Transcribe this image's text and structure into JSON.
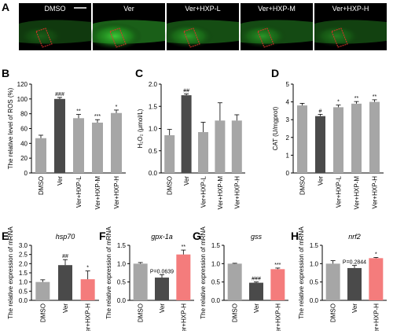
{
  "figure": {
    "panel_a": {
      "letter": "A",
      "images": [
        {
          "label": "DMSO",
          "glow": 0.25
        },
        {
          "label": "Ver",
          "glow": 0.9
        },
        {
          "label": "Ver+HXP-L",
          "glow": 0.6
        },
        {
          "label": "Ver+HXP-M",
          "glow": 0.55
        },
        {
          "label": "Ver+HXP-H",
          "glow": 0.4
        }
      ],
      "colors": {
        "background": "#000000",
        "tissue": "#2ea82a",
        "roi": "#e0302a",
        "scale_bar": "#ffffff"
      }
    },
    "colors": {
      "dmso": "#a6a6a6",
      "ver": "#4a4a4a",
      "treat_gray": "#a6a6a6",
      "treat_pink": "#f47c7c"
    }
  },
  "chart_data": [
    {
      "letter": "B",
      "type": "bar",
      "ylabel": "The relative level of ROS (%)",
      "ylim": [
        0,
        120
      ],
      "ticks": [
        0,
        20,
        40,
        60,
        80,
        100,
        120
      ],
      "categories": [
        "DMSO",
        "Ver",
        "Ver+HXP-L",
        "Ver+HXP-M",
        "Ver+HXP-H"
      ],
      "values": [
        47,
        100,
        74,
        68,
        81
      ],
      "errors": [
        4,
        2,
        5,
        4,
        4
      ],
      "colors": [
        "#a6a6a6",
        "#4a4a4a",
        "#a6a6a6",
        "#a6a6a6",
        "#a6a6a6"
      ],
      "sig": [
        "",
        "###",
        "**",
        "***",
        "*"
      ]
    },
    {
      "letter": "C",
      "type": "bar",
      "ylabel": "H₂O₂ (μmol/L)",
      "ylim": [
        0,
        2.0
      ],
      "ticks": [
        0.0,
        0.5,
        1.0,
        1.5,
        2.0
      ],
      "tick_decimals": 1,
      "categories": [
        "DMSO",
        "Ver",
        "Ver+HXP-L",
        "Ver+HXP-M",
        "Ver+HXP-H"
      ],
      "values": [
        0.85,
        1.75,
        0.92,
        1.18,
        1.18
      ],
      "errors": [
        0.13,
        0.03,
        0.22,
        0.4,
        0.13
      ],
      "colors": [
        "#a6a6a6",
        "#4a4a4a",
        "#a6a6a6",
        "#a6a6a6",
        "#a6a6a6"
      ],
      "sig": [
        "",
        "##",
        "",
        "",
        ""
      ]
    },
    {
      "letter": "D",
      "type": "bar",
      "ylabel": "CAT (U/mgprot)",
      "ylim": [
        0,
        5
      ],
      "ticks": [
        0,
        1,
        2,
        3,
        4,
        5
      ],
      "categories": [
        "DMSO",
        "Ver",
        "Ver+HXP-L",
        "Ver+HXP-M",
        "Ver+HXP-H"
      ],
      "values": [
        3.8,
        3.2,
        3.7,
        3.9,
        4.0
      ],
      "errors": [
        0.12,
        0.1,
        0.12,
        0.12,
        0.12
      ],
      "colors": [
        "#a6a6a6",
        "#4a4a4a",
        "#a6a6a6",
        "#a6a6a6",
        "#a6a6a6"
      ],
      "sig": [
        "",
        "#",
        "*",
        "**",
        "**"
      ]
    },
    {
      "letter": "E",
      "type": "bar",
      "title": "hsp70",
      "ylabel": "The relative expression of mRNA",
      "ylim": [
        0,
        3.0
      ],
      "ticks": [
        0.0,
        0.5,
        1.0,
        1.5,
        2.0,
        2.5,
        3.0
      ],
      "tick_decimals": 1,
      "categories": [
        "DMSO",
        "Ver",
        "Ver+HXP-H"
      ],
      "values": [
        1.0,
        1.92,
        1.15
      ],
      "errors": [
        0.12,
        0.3,
        0.45
      ],
      "colors": [
        "#a6a6a6",
        "#4a4a4a",
        "#f47c7c"
      ],
      "sig": [
        "",
        "##",
        "*"
      ]
    },
    {
      "letter": "F",
      "type": "bar",
      "title": "gpx-1a",
      "ylabel": "The relative expression of mRNA",
      "ylim": [
        0,
        1.5
      ],
      "ticks": [
        0.0,
        0.5,
        1.0,
        1.5
      ],
      "tick_decimals": 1,
      "categories": [
        "DMSO",
        "Ver",
        "Ver+HXP-H"
      ],
      "values": [
        1.0,
        0.62,
        1.25
      ],
      "errors": [
        0.03,
        0.08,
        0.12
      ],
      "colors": [
        "#a6a6a6",
        "#4a4a4a",
        "#f47c7c"
      ],
      "sig": [
        "",
        "P=0.0639",
        "**"
      ]
    },
    {
      "letter": "G",
      "type": "bar",
      "title": "gss",
      "ylabel": "The relative expression of mRNA",
      "ylim": [
        0,
        1.5
      ],
      "ticks": [
        0.0,
        0.5,
        1.0,
        1.5
      ],
      "tick_decimals": 1,
      "categories": [
        "DMSO",
        "Ver",
        "Ver+HXP-H"
      ],
      "values": [
        1.0,
        0.48,
        0.85
      ],
      "errors": [
        0.01,
        0.02,
        0.03
      ],
      "colors": [
        "#a6a6a6",
        "#4a4a4a",
        "#f47c7c"
      ],
      "sig": [
        "",
        "###",
        "***"
      ]
    },
    {
      "letter": "H",
      "type": "bar",
      "title": "nrf2",
      "ylabel": "The relative expression of mRNA",
      "ylim": [
        0,
        1.5
      ],
      "ticks": [
        0.0,
        0.5,
        1.0,
        1.5
      ],
      "tick_decimals": 1,
      "categories": [
        "DMSO",
        "Ver",
        "Ver+HXP-H"
      ],
      "values": [
        1.0,
        0.88,
        1.15
      ],
      "errors": [
        0.08,
        0.07,
        0.02
      ],
      "colors": [
        "#a6a6a6",
        "#4a4a4a",
        "#f47c7c"
      ],
      "sig": [
        "",
        "P=0.2844",
        "*"
      ]
    }
  ]
}
